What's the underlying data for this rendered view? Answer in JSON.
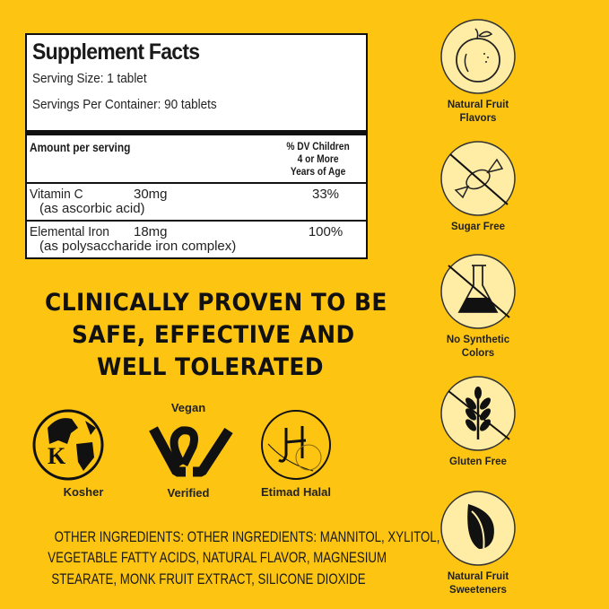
{
  "colors": {
    "background": "#FDC512",
    "badge_fill": "#FFEDA6",
    "ink": "#111111"
  },
  "facts": {
    "title": "Supplement Facts",
    "serving_size": "Serving Size: 1 tablet",
    "servings_per_container": "Servings Per Container: 90 tablets",
    "amount_header": "Amount per serving",
    "dv_header": [
      "% DV Children",
      "4 or More",
      "Years of Age"
    ],
    "rows": [
      {
        "name": "Vitamin C",
        "amount": "30mg",
        "dv": "33%",
        "source": "(as ascorbic acid)"
      },
      {
        "name": "Elemental Iron",
        "amount": "18mg",
        "dv": "100%",
        "source": "(as polysaccharide iron complex)"
      }
    ]
  },
  "headline": [
    "CLINICALLY PROVEN TO BE",
    "SAFE, EFFECTIVE AND",
    "WELL TOLERATED"
  ],
  "certifications": [
    {
      "label": "Kosher",
      "icon": "kosher-globe-icon"
    },
    {
      "label_top": "Vegan",
      "label": "Verified",
      "icon": "vegan-verified-icon"
    },
    {
      "label": "Etimad Halal",
      "icon": "halal-icon"
    }
  ],
  "ingredients": [
    "OTHER INGREDIENTS: OTHER INGREDIENTS: MANNITOL, XYLITOL,",
    "VEGETABLE FATTY ACIDS, NATURAL FLAVOR, MAGNESIUM",
    "STEARATE, MONK FRUIT EXTRACT, SILICONE DIOXIDE"
  ],
  "features": [
    {
      "label": [
        "Natural Fruit",
        "Flavors"
      ],
      "icon": "orange-fruit-icon"
    },
    {
      "label": [
        "Sugar Free"
      ],
      "icon": "no-candy-icon"
    },
    {
      "label": [
        "No Synthetic",
        "Colors"
      ],
      "icon": "no-flask-icon"
    },
    {
      "label": [
        "Gluten Free"
      ],
      "icon": "no-wheat-icon"
    },
    {
      "label": [
        "Natural Fruit",
        "Sweeteners"
      ],
      "icon": "leaf-icon"
    }
  ]
}
